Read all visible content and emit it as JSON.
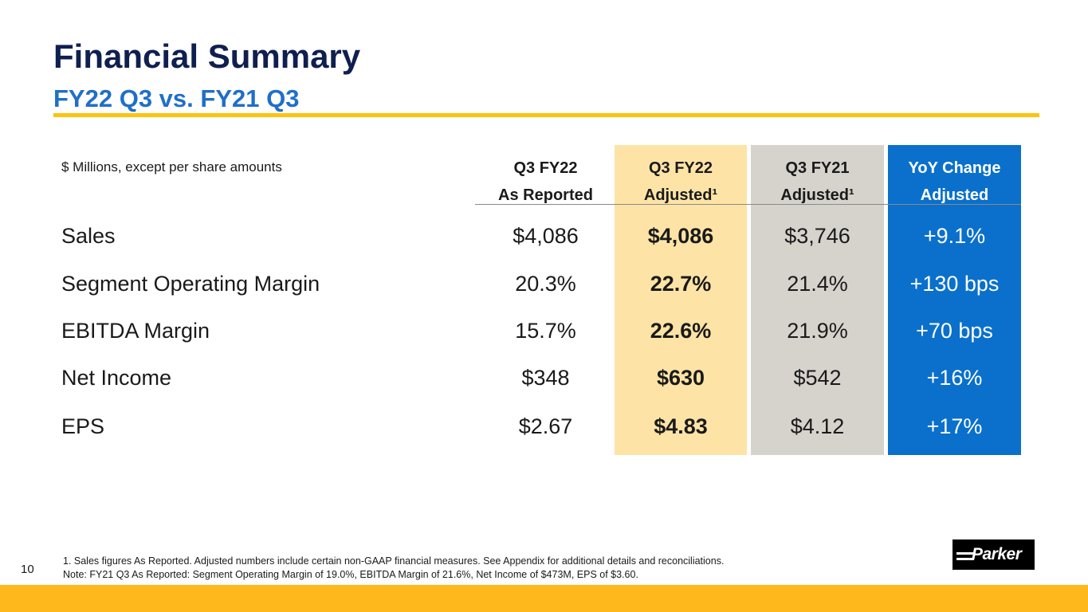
{
  "title": "Financial Summary",
  "subtitle": "FY22 Q3 vs. FY21 Q3",
  "table": {
    "note": "$ Millions, except per share amounts",
    "columns": [
      {
        "line1": "Q3 FY22",
        "line2": "As Reported"
      },
      {
        "line1": "Q3 FY22",
        "line2": "Adjusted¹"
      },
      {
        "line1": "Q3 FY21",
        "line2": "Adjusted¹"
      },
      {
        "line1": "YoY Change",
        "line2": "Adjusted"
      }
    ],
    "rows": [
      {
        "label": "Sales",
        "values": [
          "$4,086",
          "$4,086",
          "$3,746",
          "+9.1%"
        ]
      },
      {
        "label": "Segment Operating Margin",
        "values": [
          "20.3%",
          "22.7%",
          "21.4%",
          "+130 bps"
        ]
      },
      {
        "label": "EBITDA Margin",
        "values": [
          "15.7%",
          "22.6%",
          "21.9%",
          "+70 bps"
        ]
      },
      {
        "label": "Net Income",
        "values": [
          "$348",
          "$630",
          "$542",
          "+16%"
        ]
      },
      {
        "label": "EPS",
        "values": [
          "$2.67",
          "$4.83",
          "$4.12",
          "+17%"
        ]
      }
    ]
  },
  "footnotes": [
    "1. Sales figures As Reported. Adjusted numbers include certain non-GAAP financial measures. See Appendix for additional details and reconciliations.",
    "Note: FY21 Q3 As Reported: Segment Operating Margin of 19.0%, EBITDA Margin of 21.6%, Net Income of $473M, EPS of $3.60."
  ],
  "page_number": "10",
  "logo_text": "Parker",
  "colors": {
    "title": "#0f1f4f",
    "subtitle": "#1f6fc9",
    "accent_yellow": "#ffc20e",
    "adjusted_column": "#fde4a6",
    "prior_column": "#d6d2cc",
    "change_column": "#0a70cc"
  }
}
